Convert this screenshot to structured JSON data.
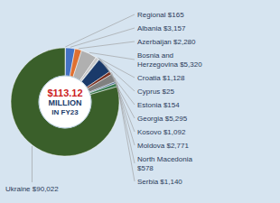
{
  "chart_data": {
    "type": "pie",
    "annotations": [
      "$113.12",
      "MILLION",
      "IN FY23"
    ],
    "categories": [
      "Regional $165",
      "Albania $3,157",
      "Azerbaijan $2,280",
      "Bosnia and\nHerzegovina $5,320",
      "Croatia $1,128",
      "Cyprus $25",
      "Estonia $154",
      "Georgia $5,295",
      "Kosovo $1,092",
      "Moldova $2,771",
      "North Macedonia\n$578",
      "Serbia $1,140",
      "Ukraine $90,022"
    ],
    "values": [
      165,
      3157,
      2280,
      5320,
      1128,
      25,
      154,
      5295,
      1092,
      2771,
      578,
      1140,
      90022
    ],
    "colors": [
      "#8ab888",
      "#4472c4",
      "#e07030",
      "#b0b0b0",
      "#c8c8c8",
      "#e8c840",
      "#2e5f8a",
      "#1a3a6a",
      "#7a3020",
      "#808080",
      "#4a6a90",
      "#3a7a50",
      "#3a5f2a"
    ]
  }
}
